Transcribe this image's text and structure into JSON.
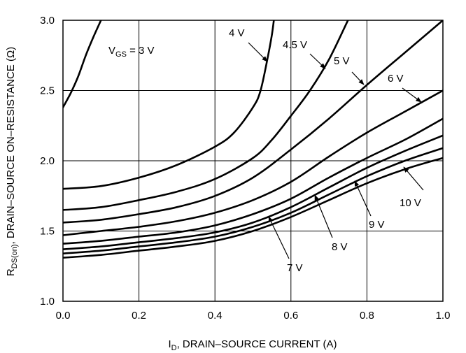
{
  "chart_data": {
    "type": "line",
    "xlabel": "I_D, DRAIN–SOURCE CURRENT (A)",
    "xlabel_parts": {
      "main": "I",
      "sub": "D",
      "rest": ", DRAIN–SOURCE CURRENT (A)"
    },
    "ylabel": "R_DS(on), DRAIN–SOURCE ON–RESISTANCE (Ω)",
    "ylabel_parts": {
      "main": "R",
      "sub": "DS(on)",
      "rest": ", DRAIN–SOURCE ON–RESISTANCE (Ω)"
    },
    "xlim": [
      0.0,
      1.0
    ],
    "ylim": [
      1.0,
      3.0
    ],
    "x_ticks": [
      "0.0",
      "0.2",
      "0.4",
      "0.6",
      "0.8",
      "1.0"
    ],
    "y_ticks": [
      "1.0",
      "1.5",
      "2.0",
      "2.5",
      "3.0"
    ],
    "grid": true,
    "series": [
      {
        "name": "V_GS = 3 V",
        "label": {
          "pre": "V",
          "sub": "GS",
          "post": " = 3 V"
        },
        "x": [
          0.0,
          0.02,
          0.04,
          0.06,
          0.08,
          0.1
        ],
        "y": [
          2.38,
          2.48,
          2.6,
          2.75,
          2.88,
          3.0
        ]
      },
      {
        "name": "4 V",
        "label": {
          "pre": "4 V",
          "sub": "",
          "post": ""
        },
        "x": [
          0.0,
          0.1,
          0.2,
          0.3,
          0.4,
          0.45,
          0.5,
          0.52,
          0.54,
          0.55,
          0.555
        ],
        "y": [
          1.8,
          1.82,
          1.88,
          1.97,
          2.1,
          2.2,
          2.38,
          2.5,
          2.75,
          2.9,
          3.0
        ]
      },
      {
        "name": "4.5 V",
        "label": {
          "pre": "4.5 V",
          "sub": "",
          "post": ""
        },
        "x": [
          0.0,
          0.1,
          0.2,
          0.3,
          0.4,
          0.5,
          0.55,
          0.6,
          0.65,
          0.7,
          0.75
        ],
        "y": [
          1.65,
          1.67,
          1.72,
          1.78,
          1.87,
          2.02,
          2.15,
          2.32,
          2.5,
          2.72,
          3.0
        ]
      },
      {
        "name": "5 V",
        "label": {
          "pre": "5 V",
          "sub": "",
          "post": ""
        },
        "x": [
          0.0,
          0.1,
          0.2,
          0.3,
          0.4,
          0.5,
          0.6,
          0.7,
          0.8,
          0.9,
          1.0
        ],
        "y": [
          1.56,
          1.58,
          1.62,
          1.67,
          1.75,
          1.88,
          2.08,
          2.3,
          2.54,
          2.77,
          3.0
        ]
      },
      {
        "name": "6 V",
        "label": {
          "pre": "6 V",
          "sub": "",
          "post": ""
        },
        "x": [
          0.0,
          0.1,
          0.2,
          0.3,
          0.4,
          0.5,
          0.6,
          0.7,
          0.8,
          0.9,
          1.0
        ],
        "y": [
          1.47,
          1.5,
          1.53,
          1.57,
          1.63,
          1.72,
          1.85,
          2.03,
          2.2,
          2.35,
          2.5
        ]
      },
      {
        "name": "7 V",
        "label": {
          "pre": "7 V",
          "sub": "",
          "post": ""
        },
        "x": [
          0.0,
          0.1,
          0.2,
          0.3,
          0.4,
          0.5,
          0.6,
          0.7,
          0.8,
          0.9,
          1.0
        ],
        "y": [
          1.41,
          1.43,
          1.46,
          1.49,
          1.54,
          1.62,
          1.73,
          1.88,
          2.02,
          2.15,
          2.3
        ]
      },
      {
        "name": "8 V",
        "label": {
          "pre": "8 V",
          "sub": "",
          "post": ""
        },
        "x": [
          0.0,
          0.1,
          0.2,
          0.3,
          0.4,
          0.5,
          0.6,
          0.7,
          0.8,
          0.9,
          1.0
        ],
        "y": [
          1.37,
          1.39,
          1.42,
          1.45,
          1.49,
          1.56,
          1.67,
          1.81,
          1.95,
          2.07,
          2.18
        ]
      },
      {
        "name": "9 V",
        "label": {
          "pre": "9 V",
          "sub": "",
          "post": ""
        },
        "x": [
          0.0,
          0.1,
          0.2,
          0.3,
          0.4,
          0.5,
          0.6,
          0.7,
          0.8,
          0.9,
          1.0
        ],
        "y": [
          1.34,
          1.36,
          1.39,
          1.42,
          1.46,
          1.53,
          1.63,
          1.76,
          1.89,
          2.0,
          2.09
        ]
      },
      {
        "name": "10 V",
        "label": {
          "pre": "10 V",
          "sub": "",
          "post": ""
        },
        "x": [
          0.0,
          0.1,
          0.2,
          0.3,
          0.4,
          0.5,
          0.6,
          0.7,
          0.8,
          0.9,
          1.0
        ],
        "y": [
          1.31,
          1.33,
          1.36,
          1.39,
          1.43,
          1.5,
          1.6,
          1.72,
          1.84,
          1.94,
          2.02
        ]
      }
    ]
  }
}
